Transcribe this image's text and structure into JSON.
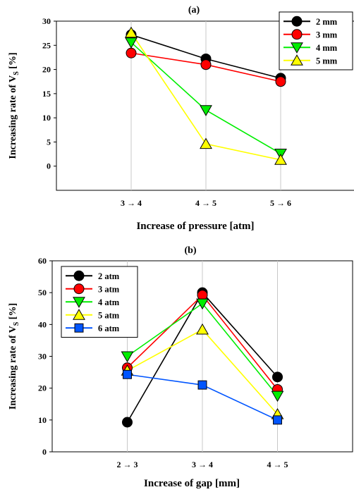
{
  "chart_data": [
    {
      "panel_label": "(a)",
      "type": "line",
      "categories": [
        "3 → 4",
        "4 → 5",
        "5 → 6"
      ],
      "xlabel": "Increase of pressure [atm]",
      "ylabel_main": "Increasing rate of V",
      "ylabel_sub": "S",
      "ylabel_tail": " [%]",
      "ylim": [
        -5,
        30
      ],
      "yticks": [
        0,
        5,
        10,
        15,
        20,
        25,
        30
      ],
      "grid": "vertical",
      "legend_position": "top-right",
      "series": [
        {
          "name": "2 mm",
          "color": "#000000",
          "marker": "circle",
          "values": [
            27.2,
            22.2,
            18.2
          ]
        },
        {
          "name": "3 mm",
          "color": "#ff0000",
          "marker": "circle",
          "values": [
            23.4,
            21.0,
            17.5
          ]
        },
        {
          "name": "4 mm",
          "color": "#00ee00",
          "marker": "triangle-down",
          "values": [
            25.6,
            11.6,
            2.6
          ]
        },
        {
          "name": "5 mm",
          "color": "#ffff00",
          "marker": "triangle-up",
          "values": [
            27.6,
            4.6,
            1.3
          ]
        }
      ]
    },
    {
      "panel_label": "(b)",
      "type": "line",
      "categories": [
        "2 → 3",
        "3 → 4",
        "4 → 5"
      ],
      "xlabel": "Increase of gap [mm]",
      "ylabel_main": "Increasing rate of V",
      "ylabel_sub": "S",
      "ylabel_tail": " [%]",
      "ylim": [
        0,
        60
      ],
      "yticks": [
        0,
        10,
        20,
        30,
        40,
        50,
        60
      ],
      "grid": "vertical",
      "legend_position": "top-left",
      "series": [
        {
          "name": "2 atm",
          "color": "#000000",
          "marker": "circle",
          "values": [
            9.3,
            50.0,
            23.5
          ]
        },
        {
          "name": "3 atm",
          "color": "#ff0000",
          "marker": "circle",
          "values": [
            26.4,
            49.2,
            19.6
          ]
        },
        {
          "name": "4 atm",
          "color": "#00ee00",
          "marker": "triangle-down",
          "values": [
            30.0,
            46.6,
            17.6
          ]
        },
        {
          "name": "5 atm",
          "color": "#ffff00",
          "marker": "triangle-up",
          "values": [
            25.5,
            38.4,
            11.8
          ]
        },
        {
          "name": "6 atm",
          "color": "#0055ff",
          "marker": "square",
          "values": [
            24.3,
            21.0,
            10.0
          ]
        }
      ]
    }
  ]
}
